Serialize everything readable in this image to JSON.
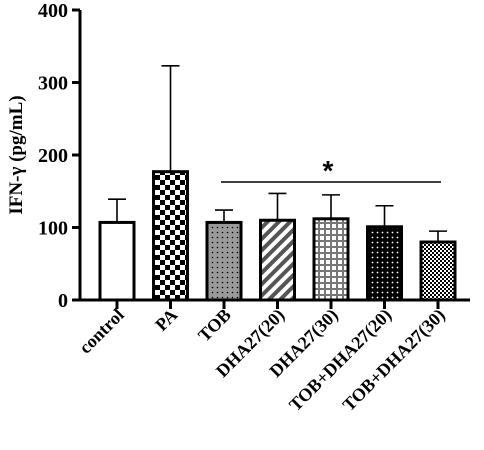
{
  "chart_data": {
    "type": "bar",
    "ylabel": "IFN-γ (pg/mL)",
    "ylim": [
      0,
      400
    ],
    "yticks": [
      "0",
      "100",
      "200",
      "300",
      "400"
    ],
    "ytick_values": [
      0,
      100,
      200,
      300,
      400
    ],
    "categories": [
      "control",
      "PA",
      "TOB",
      "DHA27(20)",
      "DHA27(30)",
      "TOB+DHA27(20)",
      "TOB+DHA27(30)"
    ],
    "values": [
      107,
      177,
      107,
      110,
      112,
      101,
      80
    ],
    "error_upper": [
      139,
      323,
      124,
      147,
      145,
      130,
      95
    ],
    "patterns": [
      "white",
      "checker-large",
      "gray-dots",
      "diagonal-stripes",
      "grid",
      "black-dots",
      "checker-fine"
    ],
    "significance": {
      "label": "*",
      "from_category": "TOB",
      "to_category": "TOB+DHA27(30)"
    },
    "grid": false,
    "legend": "none"
  }
}
